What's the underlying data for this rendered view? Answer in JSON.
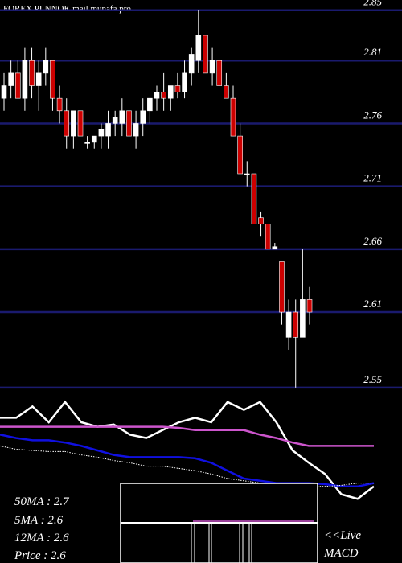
{
  "chart_data": [
    {
      "type": "candlestick",
      "title": "FOREX  PLNNOK mail.munafa.pro",
      "open": [
        2.78,
        2.79,
        2.8,
        2.78,
        2.81,
        2.79,
        2.8,
        2.81,
        2.78,
        2.77,
        2.75,
        2.77,
        2.745,
        2.745,
        2.75,
        2.75,
        2.76,
        2.76,
        2.77,
        2.75,
        2.76,
        2.77,
        2.78,
        2.785,
        2.78,
        2.79,
        2.785,
        2.8,
        2.81,
        2.83,
        2.8,
        2.81,
        2.79,
        2.78,
        2.75,
        2.72,
        2.72,
        2.685,
        2.68,
        2.66,
        2.65,
        2.59,
        2.61,
        2.59,
        2.62
      ],
      "high": [
        2.8,
        2.81,
        2.81,
        2.82,
        2.82,
        2.81,
        2.82,
        2.81,
        2.79,
        2.78,
        2.77,
        2.77,
        2.75,
        2.75,
        2.76,
        2.77,
        2.77,
        2.78,
        2.77,
        2.77,
        2.78,
        2.78,
        2.79,
        2.8,
        2.79,
        2.8,
        2.81,
        2.82,
        2.85,
        2.83,
        2.82,
        2.81,
        2.8,
        2.79,
        2.76,
        2.73,
        2.72,
        2.69,
        2.68,
        2.665,
        2.65,
        2.62,
        2.62,
        2.66,
        2.63
      ],
      "low": [
        2.77,
        2.78,
        2.78,
        2.77,
        2.78,
        2.77,
        2.79,
        2.77,
        2.76,
        2.74,
        2.74,
        2.75,
        2.74,
        2.74,
        2.74,
        2.74,
        2.75,
        2.75,
        2.75,
        2.74,
        2.75,
        2.76,
        2.77,
        2.77,
        2.77,
        2.78,
        2.78,
        2.79,
        2.8,
        2.8,
        2.79,
        2.79,
        2.78,
        2.75,
        2.72,
        2.71,
        2.68,
        2.67,
        2.66,
        2.66,
        2.6,
        2.58,
        2.55,
        2.59,
        2.6
      ],
      "close": [
        2.79,
        2.8,
        2.78,
        2.81,
        2.79,
        2.8,
        2.81,
        2.78,
        2.77,
        2.75,
        2.77,
        2.75,
        2.745,
        2.75,
        2.755,
        2.76,
        2.765,
        2.77,
        2.75,
        2.76,
        2.77,
        2.78,
        2.785,
        2.78,
        2.79,
        2.785,
        2.8,
        2.815,
        2.83,
        2.8,
        2.81,
        2.79,
        2.78,
        2.75,
        2.72,
        2.72,
        2.68,
        2.68,
        2.66,
        2.662,
        2.61,
        2.61,
        2.59,
        2.62,
        2.61
      ],
      "up_color": "#ffffff",
      "down_color": "#cc0000",
      "grid_color": "#1a1a6e",
      "ylim": [
        2.548,
        2.853
      ],
      "yticks": [
        2.85,
        2.81,
        2.76,
        2.71,
        2.66,
        2.61,
        2.55
      ],
      "grid": true
    },
    {
      "type": "line",
      "ylim": [
        0,
        100
      ],
      "series": [
        {
          "color": "#ffffff",
          "style": "solid",
          "values": [
            79,
            79,
            89,
            75,
            93,
            75,
            71,
            73,
            64,
            61,
            68,
            75,
            79,
            75,
            93,
            86,
            93,
            75,
            50,
            39,
            29,
            11,
            7,
            18
          ]
        },
        {
          "color": "#cc55cc",
          "style": "solid",
          "values": [
            71,
            71,
            71,
            71,
            71,
            71,
            71,
            71,
            71,
            71,
            71,
            70,
            68,
            68,
            68,
            68,
            64,
            61,
            57,
            54,
            54,
            54,
            54,
            54
          ]
        },
        {
          "color": "#1010e0",
          "style": "solid",
          "values": [
            64,
            61,
            59,
            59,
            57,
            54,
            50,
            46,
            44,
            44,
            44,
            44,
            43,
            39,
            32,
            25,
            23,
            21,
            21,
            21,
            20,
            18,
            18,
            21
          ]
        },
        {
          "color": "#ffffff",
          "style": "dotted",
          "values": [
            54,
            51,
            50,
            49,
            49,
            46,
            44,
            41,
            39,
            36,
            36,
            34,
            32,
            29,
            25,
            23,
            21,
            20,
            19,
            18,
            18,
            19,
            21,
            21
          ]
        }
      ],
      "annotations": [
        "50MA : 2.7",
        "5MA : 2.6",
        "12MA : 2.6",
        "Price  : 2.6",
        "<<Live",
        "MACD"
      ]
    }
  ]
}
